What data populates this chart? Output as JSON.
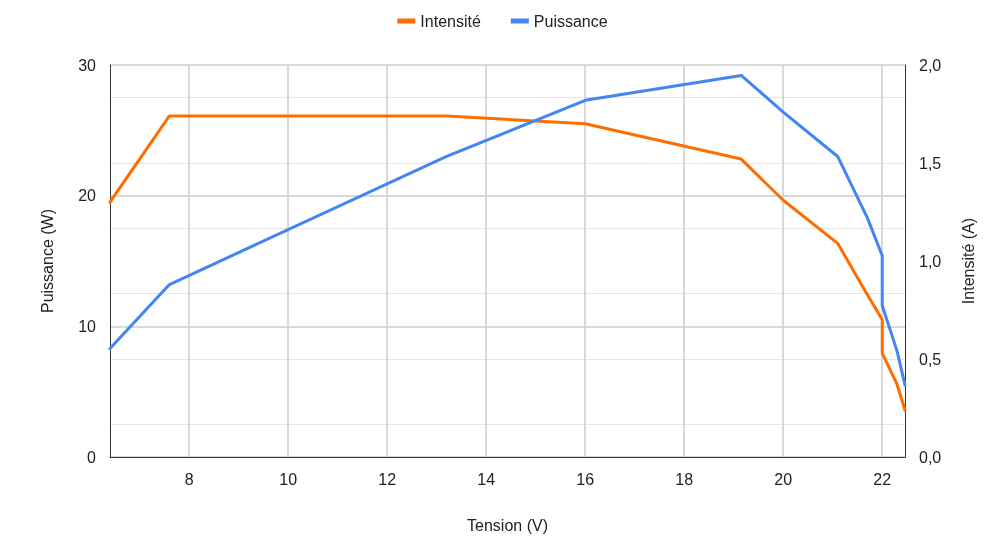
{
  "chart_data": {
    "type": "line",
    "xlabel": "Tension (V)",
    "ylabel": "Puissance (W)",
    "y2label": "Intensité (A)",
    "xlim": [
      6.4,
      22.46
    ],
    "xticks": [
      8,
      10,
      12,
      14,
      16,
      18,
      20,
      22
    ],
    "ylim": [
      0,
      30
    ],
    "yticks": [
      0,
      10,
      20,
      30
    ],
    "y2lim": [
      0,
      2
    ],
    "y2ticks": [
      {
        "value": 0,
        "label": "0,0"
      },
      {
        "value": 0.5,
        "label": "0,5"
      },
      {
        "value": 1,
        "label": "1,0"
      },
      {
        "value": 1.5,
        "label": "1,5"
      },
      {
        "value": 2,
        "label": "2,0"
      }
    ],
    "grid": true,
    "legend": "top",
    "marker": "none",
    "line_style": "solid",
    "series": [
      {
        "name": "Intensité",
        "color": "#ff6d01",
        "axis": "y2",
        "x": [
          6.4,
          7.6,
          13.2,
          16.0,
          19.15,
          20.0,
          21.1,
          21.65,
          22.0,
          22.0,
          22.3,
          22.46
        ],
        "values": [
          1.3,
          1.74,
          1.74,
          1.7,
          1.52,
          1.31,
          1.09,
          0.85,
          0.7,
          0.53,
          0.37,
          0.24
        ]
      },
      {
        "name": "Puissance",
        "color": "#4285f4",
        "x": [
          6.4,
          7.6,
          13.2,
          16.0,
          19.15,
          20.0,
          21.1,
          21.7,
          22.0,
          22.0,
          22.3,
          22.46
        ],
        "values": [
          8.3,
          13.2,
          23.0,
          27.3,
          29.2,
          26.4,
          23.0,
          18.3,
          15.4,
          11.6,
          8.1,
          5.5
        ]
      }
    ]
  }
}
